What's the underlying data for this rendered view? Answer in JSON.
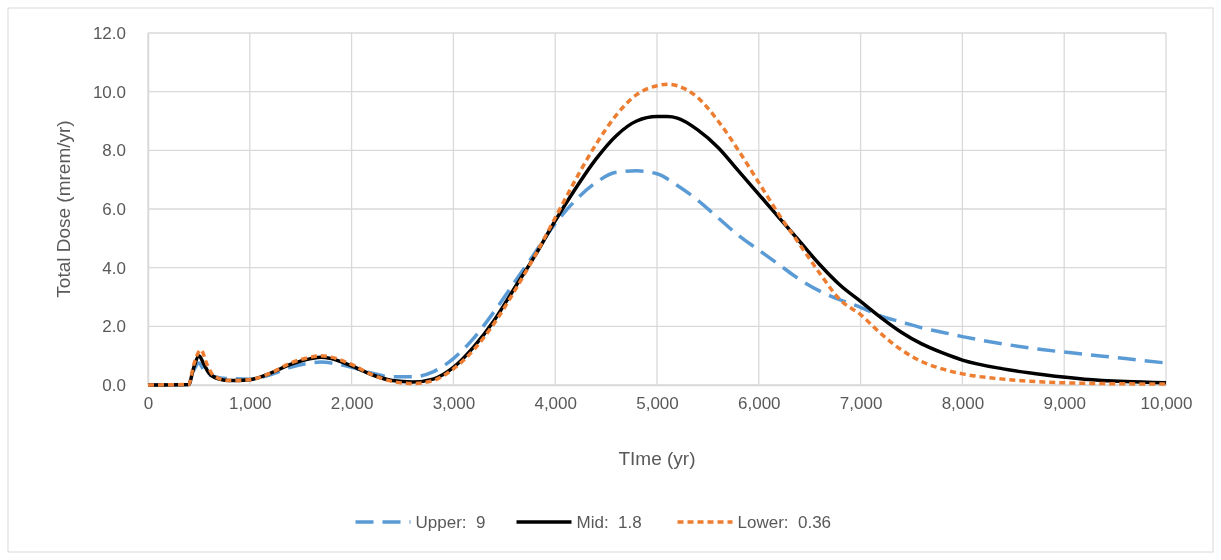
{
  "chart_data": {
    "type": "line",
    "xlabel": "TIme (yr)",
    "ylabel": "Total Dose (mrem/yr)",
    "xlim": [
      0,
      10000
    ],
    "xticks": [
      {
        "value": 0,
        "label": "0"
      },
      {
        "value": 1000,
        "label": "1,000"
      },
      {
        "value": 2000,
        "label": "2,000"
      },
      {
        "value": 3000,
        "label": "3,000"
      },
      {
        "value": 4000,
        "label": "4,000"
      },
      {
        "value": 5000,
        "label": "5,000"
      },
      {
        "value": 6000,
        "label": "6,000"
      },
      {
        "value": 7000,
        "label": "7,000"
      },
      {
        "value": 8000,
        "label": "8,000"
      },
      {
        "value": 9000,
        "label": "9,000"
      },
      {
        "value": 10000,
        "label": "10,000"
      }
    ],
    "ylim": [
      0,
      12
    ],
    "yticks": [
      {
        "value": 0,
        "label": "0.0"
      },
      {
        "value": 2,
        "label": "2.0"
      },
      {
        "value": 4,
        "label": "4.0"
      },
      {
        "value": 6,
        "label": "6.0"
      },
      {
        "value": 8,
        "label": "8.0"
      },
      {
        "value": 10,
        "label": "10.0"
      },
      {
        "value": 12,
        "label": "12.0"
      }
    ],
    "grid": true,
    "legend": "bottom",
    "marker": "none",
    "series": [
      {
        "name": "Upper:  9",
        "color": "#5b9bd5",
        "line_style": "dashed",
        "x": [
          0,
          400,
          450,
          500,
          550,
          600,
          700,
          800,
          1000,
          1200,
          1400,
          1600,
          1700,
          1800,
          2000,
          2200,
          2400,
          2600,
          2800,
          3000,
          3200,
          3400,
          3600,
          3800,
          4000,
          4200,
          4400,
          4600,
          4800,
          5000,
          5200,
          5400,
          5600,
          5800,
          6000,
          6200,
          6400,
          6600,
          6800,
          7000,
          7200,
          7400,
          7600,
          7800,
          8000,
          8400,
          8800,
          9200,
          9600,
          10000
        ],
        "values": [
          0,
          0.02,
          0.5,
          0.75,
          0.5,
          0.35,
          0.25,
          0.22,
          0.2,
          0.35,
          0.6,
          0.75,
          0.78,
          0.75,
          0.6,
          0.4,
          0.28,
          0.28,
          0.45,
          0.9,
          1.6,
          2.5,
          3.5,
          4.5,
          5.5,
          6.3,
          6.9,
          7.25,
          7.3,
          7.2,
          6.8,
          6.3,
          5.7,
          5.1,
          4.6,
          4.1,
          3.6,
          3.2,
          2.9,
          2.65,
          2.35,
          2.15,
          1.95,
          1.8,
          1.65,
          1.4,
          1.2,
          1.05,
          0.9,
          0.75
        ]
      },
      {
        "name": "Mid:  1.8",
        "color": "#000000",
        "line_style": "solid",
        "x": [
          0,
          400,
          450,
          500,
          550,
          600,
          700,
          800,
          1000,
          1200,
          1400,
          1600,
          1700,
          1800,
          2000,
          2200,
          2400,
          2600,
          2800,
          3000,
          3200,
          3400,
          3600,
          3800,
          4000,
          4200,
          4400,
          4600,
          4800,
          5000,
          5100,
          5200,
          5400,
          5600,
          5800,
          6000,
          6200,
          6400,
          6600,
          6800,
          7000,
          7200,
          7400,
          7600,
          7800,
          8000,
          8400,
          8800,
          9200,
          9600,
          10000
        ],
        "values": [
          0,
          0.02,
          0.6,
          1.0,
          0.7,
          0.4,
          0.2,
          0.15,
          0.18,
          0.4,
          0.7,
          0.9,
          0.95,
          0.9,
          0.65,
          0.35,
          0.15,
          0.1,
          0.2,
          0.6,
          1.3,
          2.2,
          3.3,
          4.4,
          5.6,
          6.7,
          7.7,
          8.5,
          9.0,
          9.15,
          9.15,
          9.1,
          8.7,
          8.1,
          7.3,
          6.5,
          5.7,
          4.9,
          4.1,
          3.4,
          2.85,
          2.3,
          1.8,
          1.4,
          1.1,
          0.85,
          0.55,
          0.35,
          0.2,
          0.12,
          0.08
        ]
      },
      {
        "name": "Lower:  0.36",
        "color": "#ed7d31",
        "line_style": "dotted",
        "x": [
          0,
          400,
          450,
          520,
          580,
          650,
          800,
          1000,
          1200,
          1400,
          1600,
          1700,
          1800,
          2000,
          2200,
          2400,
          2600,
          2800,
          3000,
          3200,
          3400,
          3600,
          3800,
          4000,
          4200,
          4400,
          4600,
          4800,
          5000,
          5100,
          5200,
          5400,
          5600,
          5800,
          6000,
          6200,
          6400,
          6600,
          6800,
          7000,
          7200,
          7400,
          7600,
          7800,
          8000,
          8400,
          8800,
          9200,
          9600,
          10000
        ],
        "values": [
          0,
          0.02,
          0.7,
          1.2,
          0.7,
          0.3,
          0.15,
          0.18,
          0.4,
          0.75,
          0.95,
          1.0,
          0.95,
          0.7,
          0.35,
          0.12,
          0.05,
          0.15,
          0.55,
          1.2,
          2.1,
          3.2,
          4.4,
          5.7,
          7.0,
          8.2,
          9.2,
          9.9,
          10.2,
          10.25,
          10.2,
          9.8,
          9.0,
          8.0,
          6.9,
          5.8,
          4.8,
          3.8,
          2.9,
          2.4,
          1.75,
          1.2,
          0.8,
          0.55,
          0.38,
          0.2,
          0.1,
          0.06,
          0.04,
          0.03
        ]
      }
    ]
  }
}
